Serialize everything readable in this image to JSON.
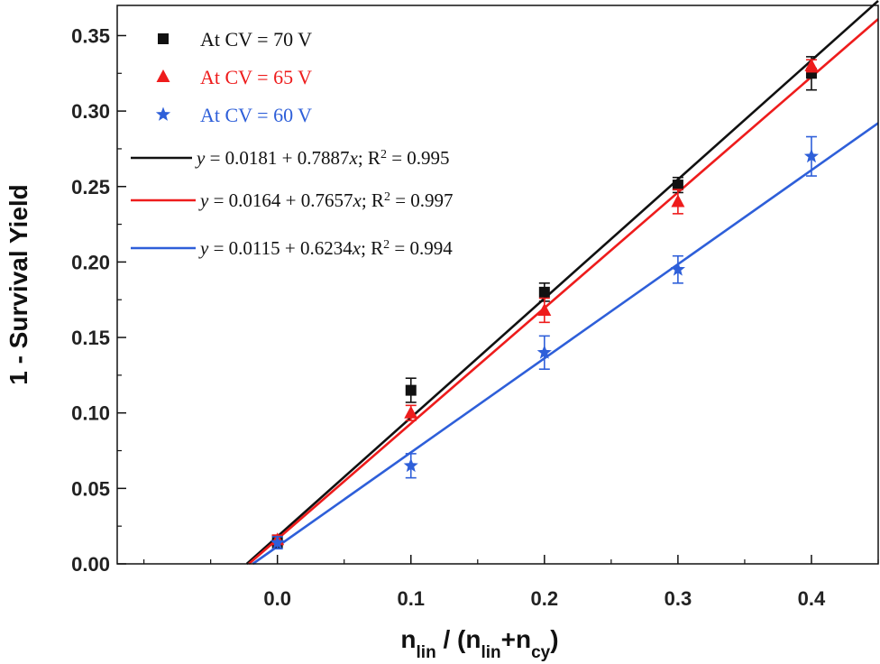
{
  "chart_data": {
    "type": "scatter",
    "xlabel": {
      "base1": "n",
      "sub1": "lin",
      "mid": " / (n",
      "sub2": "lin",
      "plus": "+n",
      "sub3": "cy",
      "close": ")"
    },
    "ylabel": "1 - Survival Yield",
    "xlim": [
      -0.12,
      0.45
    ],
    "ylim": [
      0.0,
      0.37
    ],
    "xticks": [
      "0.0",
      "0.1",
      "0.2",
      "0.3",
      "0.4"
    ],
    "xtick_values": [
      0.0,
      0.1,
      0.2,
      0.3,
      0.4
    ],
    "yticks": [
      "0.00",
      "0.05",
      "0.10",
      "0.15",
      "0.20",
      "0.25",
      "0.30",
      "0.35"
    ],
    "ytick_values": [
      0.0,
      0.05,
      0.1,
      0.15,
      0.2,
      0.25,
      0.3,
      0.35
    ],
    "legend_position": "top-left",
    "series": [
      {
        "name": "At CV = 70 V",
        "marker": "square",
        "color": "#111111",
        "x": [
          0.0,
          0.1,
          0.2,
          0.3,
          0.4
        ],
        "y": [
          0.015,
          0.115,
          0.18,
          0.251,
          0.325
        ],
        "err": [
          0.004,
          0.008,
          0.006,
          0.005,
          0.011
        ]
      },
      {
        "name": "At CV = 65 V",
        "marker": "triangle",
        "color": "#ee1c1c",
        "x": [
          0.0,
          0.1,
          0.2,
          0.3,
          0.4
        ],
        "y": [
          0.016,
          0.1,
          0.168,
          0.24,
          0.33
        ],
        "err": [
          0.003,
          0.005,
          0.008,
          0.008,
          0.004
        ]
      },
      {
        "name": "At CV = 60 V",
        "marker": "star",
        "color": "#2e5fd9",
        "x": [
          0.0,
          0.1,
          0.2,
          0.3,
          0.4
        ],
        "y": [
          0.014,
          0.065,
          0.14,
          0.195,
          0.27
        ],
        "err": [
          0.004,
          0.008,
          0.011,
          0.009,
          0.013
        ]
      }
    ],
    "fits": [
      {
        "color": "#111111",
        "intercept": 0.0181,
        "slope": 0.7887,
        "eq": {
          "y": "y",
          "mid": " = 0.0181 + 0.7887",
          "x": "x",
          "r": "; R",
          "sup": "2",
          "val": " = 0.995"
        }
      },
      {
        "color": "#ee1c1c",
        "intercept": 0.0164,
        "slope": 0.7657,
        "eq": {
          "y": "y",
          "mid": " = 0.0164 + 0.7657",
          "x": "x",
          "r": "; R",
          "sup": "2",
          "val": " = 0.997"
        }
      },
      {
        "color": "#2e5fd9",
        "intercept": 0.0115,
        "slope": 0.6234,
        "eq": {
          "y": "y",
          "mid": " = 0.0115 + 0.6234",
          "x": "x",
          "r": "; R",
          "sup": "2",
          "val": " = 0.994"
        }
      }
    ]
  }
}
